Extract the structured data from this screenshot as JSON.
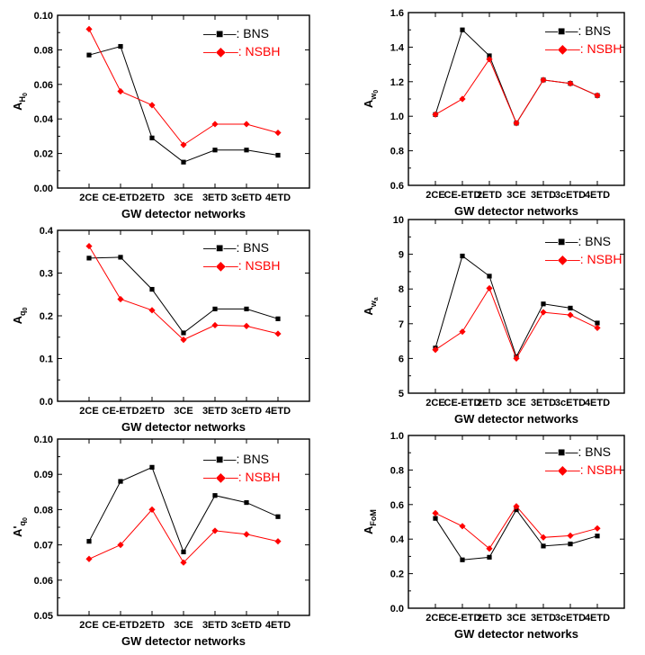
{
  "colors": {
    "BNS": "#000000",
    "NSBH": "#ff0000"
  },
  "marker_shapes": {
    "BNS": "square",
    "NSBH": "diamond"
  },
  "chart_data": [
    {
      "type": "line",
      "categories": [
        "2CE",
        "CE-ETD",
        "2ETD",
        "3CE",
        "3ETD",
        "3cETD",
        "4ETD"
      ],
      "xlabel": "GW detector networks",
      "ylabel_main": "A",
      "ylabel_prime": "",
      "ylabel_sub": "H",
      "ylabel_subsub": "0",
      "ylim": [
        0.0,
        0.1
      ],
      "yticks": [
        "0.00",
        "0.02",
        "0.04",
        "0.06",
        "0.08",
        "0.10"
      ],
      "legend_position": "top-right",
      "series": [
        {
          "name": "BNS",
          "legend_label": "—■—: BNS",
          "values": [
            0.077,
            0.082,
            0.029,
            0.015,
            0.022,
            0.022,
            0.019
          ]
        },
        {
          "name": "NSBH",
          "legend_label": "—◆—: NSBH",
          "values": [
            0.092,
            0.056,
            0.048,
            0.025,
            0.037,
            0.037,
            0.032
          ]
        }
      ]
    },
    {
      "type": "line",
      "categories": [
        "2CE",
        "CE-ETD",
        "2ETD",
        "3CE",
        "3ETD",
        "3cETD",
        "4ETD"
      ],
      "xlabel": "GW detector networks",
      "ylabel_main": "A",
      "ylabel_prime": "",
      "ylabel_sub": "w",
      "ylabel_subsub": "0",
      "ylim": [
        0.6,
        1.6
      ],
      "yticks": [
        "0.6",
        "0.8",
        "1.0",
        "1.2",
        "1.4",
        "1.6"
      ],
      "legend_position": "top-right",
      "series": [
        {
          "name": "BNS",
          "legend_label": "—■—: BNS",
          "values": [
            1.01,
            1.5,
            1.35,
            0.96,
            1.21,
            1.19,
            1.12
          ]
        },
        {
          "name": "NSBH",
          "legend_label": "—◆—: NSBH",
          "values": [
            1.01,
            1.1,
            1.33,
            0.96,
            1.21,
            1.19,
            1.12
          ]
        }
      ]
    },
    {
      "type": "line",
      "categories": [
        "2CE",
        "CE-ETD",
        "2ETD",
        "3CE",
        "3ETD",
        "3cETD",
        "4ETD"
      ],
      "xlabel": "GW detector networks",
      "ylabel_main": "A",
      "ylabel_prime": "",
      "ylabel_sub": "q",
      "ylabel_subsub": "0",
      "ylim": [
        0.0,
        0.4
      ],
      "yticks": [
        "0.0",
        "0.1",
        "0.2",
        "0.3",
        "0.4"
      ],
      "legend_position": "top-right",
      "series": [
        {
          "name": "BNS",
          "legend_label": "—■—: BNS",
          "values": [
            0.335,
            0.337,
            0.262,
            0.16,
            0.216,
            0.216,
            0.193
          ]
        },
        {
          "name": "NSBH",
          "legend_label": "—◆—: NSBH",
          "values": [
            0.363,
            0.239,
            0.213,
            0.144,
            0.178,
            0.176,
            0.158
          ]
        }
      ]
    },
    {
      "type": "line",
      "categories": [
        "2CE",
        "CE-ETD",
        "2ETD",
        "3CE",
        "3ETD",
        "3cETD",
        "4ETD"
      ],
      "xlabel": "GW detector networks",
      "ylabel_main": "A",
      "ylabel_prime": "",
      "ylabel_sub": "w",
      "ylabel_subsub": "a",
      "ylim": [
        5,
        10
      ],
      "yticks": [
        "5",
        "6",
        "7",
        "8",
        "9",
        "10"
      ],
      "legend_position": "top-right",
      "series": [
        {
          "name": "BNS",
          "legend_label": "—■—: BNS",
          "values": [
            6.3,
            8.95,
            8.37,
            6.05,
            7.57,
            7.45,
            7.02
          ]
        },
        {
          "name": "NSBH",
          "legend_label": "—◆—: NSBH",
          "values": [
            6.25,
            6.77,
            8.02,
            6.0,
            7.33,
            7.25,
            6.88
          ]
        }
      ]
    },
    {
      "type": "line",
      "categories": [
        "2CE",
        "CE-ETD",
        "2ETD",
        "3CE",
        "3ETD",
        "3cETD",
        "4ETD"
      ],
      "xlabel": "GW detector networks",
      "ylabel_main": "A",
      "ylabel_prime": "'",
      "ylabel_sub": "q",
      "ylabel_subsub": "0",
      "ylim": [
        0.05,
        0.1
      ],
      "yticks": [
        "0.05",
        "0.06",
        "0.07",
        "0.08",
        "0.09",
        "0.10"
      ],
      "legend_position": "top-right",
      "series": [
        {
          "name": "BNS",
          "legend_label": "—■—: BNS",
          "values": [
            0.071,
            0.088,
            0.092,
            0.068,
            0.084,
            0.082,
            0.078
          ]
        },
        {
          "name": "NSBH",
          "legend_label": "—◆—: NSBH",
          "values": [
            0.066,
            0.07,
            0.08,
            0.065,
            0.074,
            0.073,
            0.071
          ]
        }
      ]
    },
    {
      "type": "line",
      "categories": [
        "2CE",
        "CE-ETD",
        "2ETD",
        "3CE",
        "3ETD",
        "3cETD",
        "4ETD"
      ],
      "xlabel": "GW detector networks",
      "ylabel_main": "A",
      "ylabel_prime": "",
      "ylabel_sub": "FoM",
      "ylabel_subsub": "",
      "ylim": [
        0.0,
        1.0
      ],
      "yticks": [
        "0.0",
        "0.2",
        "0.4",
        "0.6",
        "0.8",
        "1.0"
      ],
      "legend_position": "top-right",
      "series": [
        {
          "name": "BNS",
          "legend_label": "—■—: BNS",
          "values": [
            0.52,
            0.28,
            0.295,
            0.57,
            0.36,
            0.372,
            0.418
          ]
        },
        {
          "name": "NSBH",
          "legend_label": "—◆—: NSBH",
          "values": [
            0.55,
            0.475,
            0.345,
            0.59,
            0.41,
            0.42,
            0.462
          ]
        }
      ]
    }
  ]
}
